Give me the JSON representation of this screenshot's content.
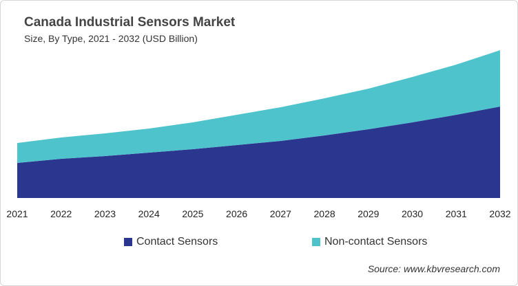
{
  "chart_data": {
    "type": "area",
    "stacked": true,
    "title": "Canada Industrial Sensors Market",
    "subtitle": "Size, By Type, 2021 - 2032 (USD Billion)",
    "x": [
      "2021",
      "2022",
      "2023",
      "2024",
      "2025",
      "2026",
      "2027",
      "2028",
      "2029",
      "2030",
      "2031",
      "2032"
    ],
    "series": [
      {
        "name": "Contact Sensors",
        "color": "#2b368f",
        "values": [
          0.51,
          0.57,
          0.61,
          0.66,
          0.71,
          0.77,
          0.83,
          0.91,
          1.0,
          1.1,
          1.21,
          1.33
        ]
      },
      {
        "name": "Non-contact Sensors",
        "color": "#4fc3cc",
        "values": [
          0.29,
          0.31,
          0.33,
          0.35,
          0.39,
          0.44,
          0.49,
          0.54,
          0.59,
          0.66,
          0.73,
          0.82
        ]
      }
    ],
    "ylim": [
      0,
      2.2
    ],
    "y_axis_shown": false,
    "grid": false,
    "legend_position": "bottom",
    "values_estimated": true
  },
  "source": "Source: www.kbvresearch.com"
}
